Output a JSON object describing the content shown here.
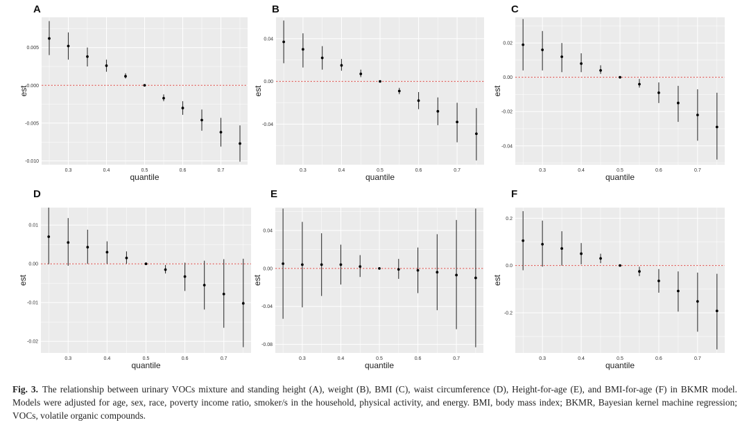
{
  "chart_data": [
    {
      "panel": "A",
      "type": "scatter",
      "xlabel": "quantile",
      "ylabel": "est",
      "xlim": [
        0.23,
        0.77
      ],
      "ylim": [
        -0.0105,
        0.009
      ],
      "xticks": [
        0.3,
        0.4,
        0.5,
        0.6,
        0.7
      ],
      "xtick_labels": [
        "0.3",
        "0.4",
        "0.5",
        "0.6",
        "0.7"
      ],
      "yticks": [
        -0.01,
        -0.005,
        0.0,
        0.005
      ],
      "ytick_labels": [
        "-0.010",
        "-0.005",
        "0.000",
        "0.005"
      ],
      "reference_line": 0,
      "x": [
        0.25,
        0.3,
        0.35,
        0.4,
        0.45,
        0.5,
        0.55,
        0.6,
        0.65,
        0.7,
        0.75
      ],
      "est": [
        0.0062,
        0.0052,
        0.0038,
        0.0026,
        0.0012,
        0.0,
        -0.0017,
        -0.003,
        -0.0046,
        -0.0062,
        -0.0077
      ],
      "lower": [
        0.004,
        0.0034,
        0.0025,
        0.0018,
        0.0009,
        0.0,
        -0.0021,
        -0.0039,
        -0.006,
        -0.0081,
        -0.0101
      ],
      "upper": [
        0.0085,
        0.007,
        0.005,
        0.0034,
        0.0016,
        0.0,
        -0.0012,
        -0.0021,
        -0.0032,
        -0.0043,
        -0.0053
      ]
    },
    {
      "panel": "B",
      "type": "scatter",
      "xlabel": "quantile",
      "ylabel": "est",
      "xlim": [
        0.23,
        0.77
      ],
      "ylim": [
        -0.078,
        0.06
      ],
      "xticks": [
        0.3,
        0.4,
        0.5,
        0.6,
        0.7
      ],
      "xtick_labels": [
        "0.3",
        "0.4",
        "0.5",
        "0.6",
        "0.7"
      ],
      "yticks": [
        -0.04,
        0.0,
        0.04
      ],
      "ytick_labels": [
        "-0.04",
        "0.00",
        "0.04"
      ],
      "reference_line": 0,
      "x": [
        0.25,
        0.3,
        0.35,
        0.4,
        0.45,
        0.5,
        0.55,
        0.6,
        0.65,
        0.7,
        0.75
      ],
      "est": [
        0.037,
        0.03,
        0.022,
        0.015,
        0.007,
        0.0,
        -0.009,
        -0.018,
        -0.028,
        -0.038,
        -0.049
      ],
      "lower": [
        0.017,
        0.013,
        0.011,
        0.01,
        0.004,
        0.0,
        -0.012,
        -0.026,
        -0.041,
        -0.057,
        -0.074
      ],
      "upper": [
        0.057,
        0.045,
        0.033,
        0.021,
        0.011,
        0.0,
        -0.006,
        -0.01,
        -0.015,
        -0.02,
        -0.025
      ]
    },
    {
      "panel": "C",
      "type": "scatter",
      "xlabel": "quantile",
      "ylabel": "est",
      "xlim": [
        0.23,
        0.77
      ],
      "ylim": [
        -0.051,
        0.035
      ],
      "xticks": [
        0.3,
        0.4,
        0.5,
        0.6,
        0.7
      ],
      "xtick_labels": [
        "0.3",
        "0.4",
        "0.5",
        "0.6",
        "0.7"
      ],
      "yticks": [
        -0.04,
        -0.02,
        0.0,
        0.02
      ],
      "ytick_labels": [
        "-0.04",
        "-0.02",
        "0.00",
        "0.02"
      ],
      "reference_line": 0,
      "x": [
        0.25,
        0.3,
        0.35,
        0.4,
        0.45,
        0.5,
        0.55,
        0.6,
        0.65,
        0.7,
        0.75
      ],
      "est": [
        0.019,
        0.016,
        0.012,
        0.008,
        0.004,
        0.0,
        -0.004,
        -0.009,
        -0.015,
        -0.022,
        -0.029
      ],
      "lower": [
        0.004,
        0.004,
        0.003,
        0.003,
        0.002,
        0.0,
        -0.006,
        -0.015,
        -0.026,
        -0.037,
        -0.048
      ],
      "upper": [
        0.034,
        0.027,
        0.02,
        0.014,
        0.007,
        0.0,
        -0.001,
        -0.003,
        -0.005,
        -0.007,
        -0.009
      ]
    },
    {
      "panel": "D",
      "type": "scatter",
      "xlabel": "quantile",
      "ylabel": "est",
      "xlim": [
        0.23,
        0.77
      ],
      "ylim": [
        -0.023,
        0.0145
      ],
      "xticks": [
        0.3,
        0.4,
        0.5,
        0.6,
        0.7
      ],
      "xtick_labels": [
        "0.3",
        "0.4",
        "0.5",
        "0.6",
        "0.7"
      ],
      "yticks": [
        -0.02,
        -0.01,
        0.0,
        0.01
      ],
      "ytick_labels": [
        "-0.02",
        "-0.01",
        "0.00",
        "0.01"
      ],
      "reference_line": 0,
      "x": [
        0.25,
        0.3,
        0.35,
        0.4,
        0.45,
        0.5,
        0.55,
        0.6,
        0.65,
        0.7,
        0.75
      ],
      "est": [
        0.007,
        0.0055,
        0.0043,
        0.003,
        0.0015,
        0.0,
        -0.0015,
        -0.0033,
        -0.0055,
        -0.0078,
        -0.0102
      ],
      "lower": [
        -0.0001,
        -0.0005,
        0.0,
        0.0,
        0.0,
        0.0,
        -0.0025,
        -0.007,
        -0.0118,
        -0.0165,
        -0.0215
      ],
      "upper": [
        0.0145,
        0.0118,
        0.0088,
        0.0058,
        0.0032,
        0.0,
        -0.0003,
        0.0003,
        0.0008,
        0.0012,
        0.0013
      ]
    },
    {
      "panel": "E",
      "type": "scatter",
      "xlabel": "quantile",
      "ylabel": "est",
      "xlim": [
        0.23,
        0.77
      ],
      "ylim": [
        -0.089,
        0.064
      ],
      "xticks": [
        0.3,
        0.4,
        0.5,
        0.6,
        0.7
      ],
      "xtick_labels": [
        "0.3",
        "0.4",
        "0.5",
        "0.6",
        "0.7"
      ],
      "yticks": [
        -0.08,
        -0.04,
        0.0,
        0.04
      ],
      "ytick_labels": [
        "-0.08",
        "-0.04",
        "0.00",
        "0.04"
      ],
      "reference_line": 0,
      "x": [
        0.25,
        0.3,
        0.35,
        0.4,
        0.45,
        0.5,
        0.55,
        0.6,
        0.65,
        0.7,
        0.75
      ],
      "est": [
        0.005,
        0.004,
        0.004,
        0.004,
        0.002,
        0.0,
        -0.001,
        -0.002,
        -0.004,
        -0.007,
        -0.01
      ],
      "lower": [
        -0.053,
        -0.041,
        -0.029,
        -0.017,
        -0.009,
        0.0,
        -0.011,
        -0.026,
        -0.044,
        -0.064,
        -0.083
      ],
      "upper": [
        0.063,
        0.049,
        0.037,
        0.025,
        0.014,
        0.0,
        0.01,
        0.022,
        0.036,
        0.051,
        0.063
      ]
    },
    {
      "panel": "F",
      "type": "scatter",
      "xlabel": "quantile",
      "ylabel": "est",
      "xlim": [
        0.23,
        0.77
      ],
      "ylim": [
        -0.37,
        0.245
      ],
      "xticks": [
        0.3,
        0.4,
        0.5,
        0.6,
        0.7
      ],
      "xtick_labels": [
        "0.3",
        "0.4",
        "0.5",
        "0.6",
        "0.7"
      ],
      "yticks": [
        -0.2,
        0.0,
        0.2
      ],
      "ytick_labels": [
        "-0.2",
        "0.0",
        "0.2"
      ],
      "reference_line": 0,
      "x": [
        0.25,
        0.3,
        0.35,
        0.4,
        0.45,
        0.5,
        0.55,
        0.6,
        0.65,
        0.7,
        0.75
      ],
      "est": [
        0.105,
        0.09,
        0.072,
        0.05,
        0.03,
        0.0,
        -0.025,
        -0.065,
        -0.108,
        -0.152,
        -0.192
      ],
      "lower": [
        -0.02,
        -0.005,
        0.0,
        0.005,
        0.01,
        0.0,
        -0.045,
        -0.115,
        -0.195,
        -0.28,
        -0.355
      ],
      "upper": [
        0.23,
        0.19,
        0.145,
        0.095,
        0.05,
        0.0,
        -0.005,
        -0.015,
        -0.025,
        -0.03,
        -0.035
      ]
    }
  ],
  "caption": {
    "label": "Fig. 3.",
    "text": "The relationship between urinary VOCs mixture and standing height (A), weight (B), BMI (C), waist circumference (D), Height-for-age (E), and BMI-for-age (F) in BKMR model. Models were adjusted for age, sex, race, poverty income ratio, smoker/s in the household, physical activity, and energy. BMI, body mass index; BKMR, Bayesian kernel machine regression; VOCs, volatile organic compounds."
  },
  "colors": {
    "panel_bg": "#ebebeb",
    "grid": "#ffffff",
    "reference_line": "#d9534f",
    "point": "#000000",
    "whisker": "#333333"
  }
}
